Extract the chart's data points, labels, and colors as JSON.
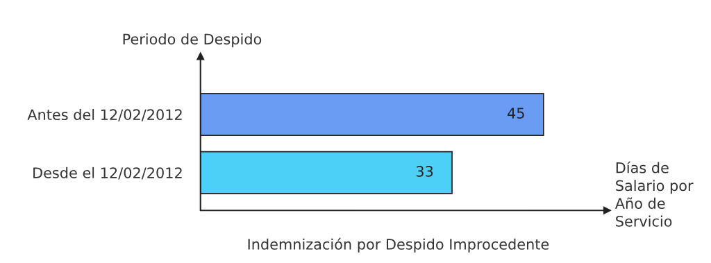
{
  "chart_data": {
    "type": "bar",
    "orientation": "horizontal",
    "title": "Indemnización por Despido Improcedente",
    "ylabel": "Periodo de Despido",
    "xlabel": "Días de Salario por Año de Servicio",
    "categories": [
      "Antes del 12/02/2012",
      "Desde el 12/02/2012"
    ],
    "values": [
      45,
      33
    ],
    "colors": [
      "#6a9cf4",
      "#4dd0f7"
    ],
    "data_labels": true,
    "grid": false,
    "legend": false
  }
}
